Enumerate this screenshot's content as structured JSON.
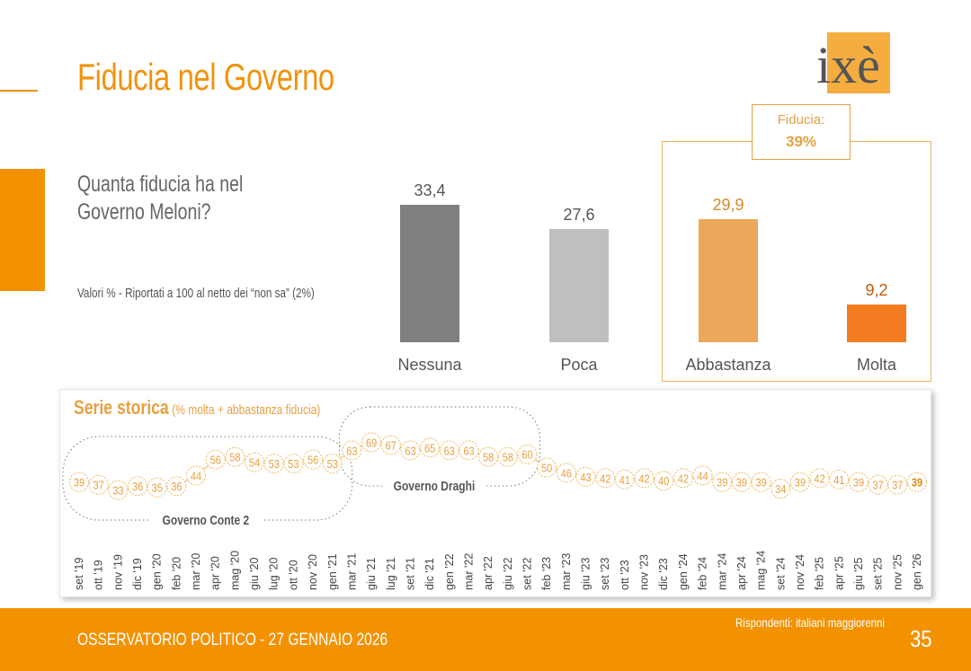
{
  "title": "Fiducia nel Governo",
  "logo": {
    "text": "ixè"
  },
  "question": "Quanta fiducia ha nel\nGoverno Meloni?",
  "note": "Valori % - Riportati a 100 al netto dei “non sa” (2%)",
  "fiducia_box": {
    "label": "Fiducia:",
    "value": "39%"
  },
  "footer": {
    "left": "OSSERVATORIO POLITICO - 27 GENNAIO 2026",
    "respondents": "Rispondenti: italiani maggiorenni",
    "page": "35"
  },
  "colors": {
    "accent": "#f39200",
    "nessuna": "#7f7f7f",
    "poca": "#bfbfbf",
    "abbastanza": "#eca75a",
    "molta": "#f47c20"
  },
  "chart_data": [
    {
      "type": "bar",
      "categories": [
        "Nessuna",
        "Poca",
        "Abbastanza",
        "Molta"
      ],
      "values": [
        33.4,
        27.6,
        29.9,
        9.2
      ],
      "value_labels": [
        "33,4",
        "27,6",
        "29,9",
        "9,2"
      ],
      "ylim": [
        0,
        35
      ],
      "title": "Quanta fiducia ha nel Governo Meloni?"
    },
    {
      "type": "line",
      "title": "Serie storica",
      "subtitle": "(% molta + abbastanza fiducia)",
      "x": [
        "set '19",
        "ott '19",
        "nov '19",
        "dic '19",
        "gen '20",
        "feb '20",
        "mar '20",
        "apr '20",
        "mag '20",
        "giu '20",
        "lug '20",
        "ott '20",
        "nov '20",
        "gen '21",
        "mar '21",
        "giu '21",
        "lug '21",
        "set '21",
        "dic '21",
        "gen '22",
        "mar '22",
        "apr '22",
        "giu '22",
        "set '22",
        "feb '23",
        "mar '23",
        "giu '23",
        "set '23",
        "ott '23",
        "nov '23",
        "dic '23",
        "gen '24",
        "feb '24",
        "mar '24",
        "apr '24",
        "mag '24",
        "set '24",
        "nov '24",
        "feb '25",
        "apr '25",
        "giu '25",
        "set '25",
        "nov '25",
        "gen '26"
      ],
      "values": [
        39,
        37,
        33,
        36,
        35,
        36,
        44,
        56,
        58,
        54,
        53,
        53,
        56,
        53,
        63,
        69,
        67,
        63,
        65,
        63,
        63,
        58,
        58,
        60,
        50,
        46,
        43,
        42,
        41,
        42,
        40,
        42,
        44,
        39,
        39,
        39,
        34,
        39,
        42,
        41,
        39,
        37,
        37,
        39
      ],
      "ylim": [
        30,
        70
      ],
      "annotations": [
        {
          "label": "Governo Conte 2",
          "from_index": 0,
          "to_index": 13
        },
        {
          "label": "Governo Draghi",
          "from_index": 14,
          "to_index": 23
        }
      ]
    }
  ]
}
